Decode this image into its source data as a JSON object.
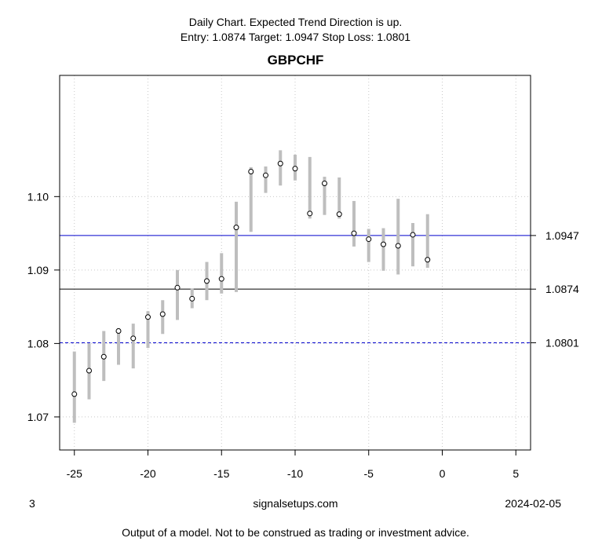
{
  "header": {
    "line1": "Daily Chart. Expected Trend Direction is up.",
    "line2": "Entry: 1.0874 Target: 1.0947 Stop Loss: 1.0801",
    "title": "GBPCHF"
  },
  "footer": {
    "left": "3",
    "center": "signalsetups.com",
    "right": "2024-02-05",
    "disclaimer": "Output of a model. Not to be construed as trading or investment advice."
  },
  "chart_data": {
    "type": "scatter",
    "title": "GBPCHF",
    "xlim": [
      -26,
      6
    ],
    "ylim": [
      1.0655,
      1.1165
    ],
    "x_ticks": [
      -25,
      -20,
      -15,
      -10,
      -5,
      0,
      5
    ],
    "y_ticks": [
      1.07,
      1.08,
      1.09,
      1.1
    ],
    "y_tick_labels": [
      "1.07",
      "1.08",
      "1.09",
      "1.10"
    ],
    "grid": true,
    "points": [
      {
        "x": -25,
        "value": 1.0731,
        "low": 1.0692,
        "high": 1.0789
      },
      {
        "x": -24,
        "value": 1.0763,
        "low": 1.0724,
        "high": 1.08
      },
      {
        "x": -23,
        "value": 1.0782,
        "low": 1.0749,
        "high": 1.0817
      },
      {
        "x": -22,
        "value": 1.0817,
        "low": 1.0771,
        "high": 1.0821
      },
      {
        "x": -21,
        "value": 1.0807,
        "low": 1.0766,
        "high": 1.0827
      },
      {
        "x": -20,
        "value": 1.0836,
        "low": 1.0794,
        "high": 1.0844
      },
      {
        "x": -19,
        "value": 1.084,
        "low": 1.0813,
        "high": 1.0859
      },
      {
        "x": -18,
        "value": 1.0876,
        "low": 1.0832,
        "high": 1.09
      },
      {
        "x": -17,
        "value": 1.0861,
        "low": 1.0848,
        "high": 1.0875
      },
      {
        "x": -16,
        "value": 1.0885,
        "low": 1.0859,
        "high": 1.0911
      },
      {
        "x": -15,
        "value": 1.0888,
        "low": 1.0868,
        "high": 1.0923
      },
      {
        "x": -14,
        "value": 1.0958,
        "low": 1.087,
        "high": 1.0993
      },
      {
        "x": -13,
        "value": 1.1034,
        "low": 1.0952,
        "high": 1.104
      },
      {
        "x": -12,
        "value": 1.1029,
        "low": 1.1005,
        "high": 1.1041
      },
      {
        "x": -11,
        "value": 1.1045,
        "low": 1.1015,
        "high": 1.1063
      },
      {
        "x": -10,
        "value": 1.1038,
        "low": 1.1022,
        "high": 1.1057
      },
      {
        "x": -9,
        "value": 1.0977,
        "low": 1.097,
        "high": 1.1054
      },
      {
        "x": -8,
        "value": 1.1018,
        "low": 1.0975,
        "high": 1.1027
      },
      {
        "x": -7,
        "value": 1.0976,
        "low": 1.097,
        "high": 1.1026
      },
      {
        "x": -6,
        "value": 1.095,
        "low": 1.0932,
        "high": 1.0994
      },
      {
        "x": -5,
        "value": 1.0942,
        "low": 1.0911,
        "high": 1.0956
      },
      {
        "x": -4,
        "value": 1.0935,
        "low": 1.0899,
        "high": 1.0957
      },
      {
        "x": -3,
        "value": 1.0933,
        "low": 1.0894,
        "high": 1.0997
      },
      {
        "x": -2,
        "value": 1.0948,
        "low": 1.0905,
        "high": 1.0964
      },
      {
        "x": -1,
        "value": 1.0914,
        "low": 1.0903,
        "high": 1.0976
      }
    ],
    "hlines": [
      {
        "name": "target",
        "value": 1.0947,
        "label": "1.0947",
        "color": "#0000cc",
        "style": "solid"
      },
      {
        "name": "entry",
        "value": 1.0874,
        "label": "1.0874",
        "color": "#000000",
        "style": "solid"
      },
      {
        "name": "stop-loss",
        "value": 1.0801,
        "label": "1.0801",
        "color": "#0000cc",
        "style": "dashed"
      }
    ],
    "colors": {
      "range_bar": "#bebebe",
      "grid": "#c8c8c8"
    }
  }
}
